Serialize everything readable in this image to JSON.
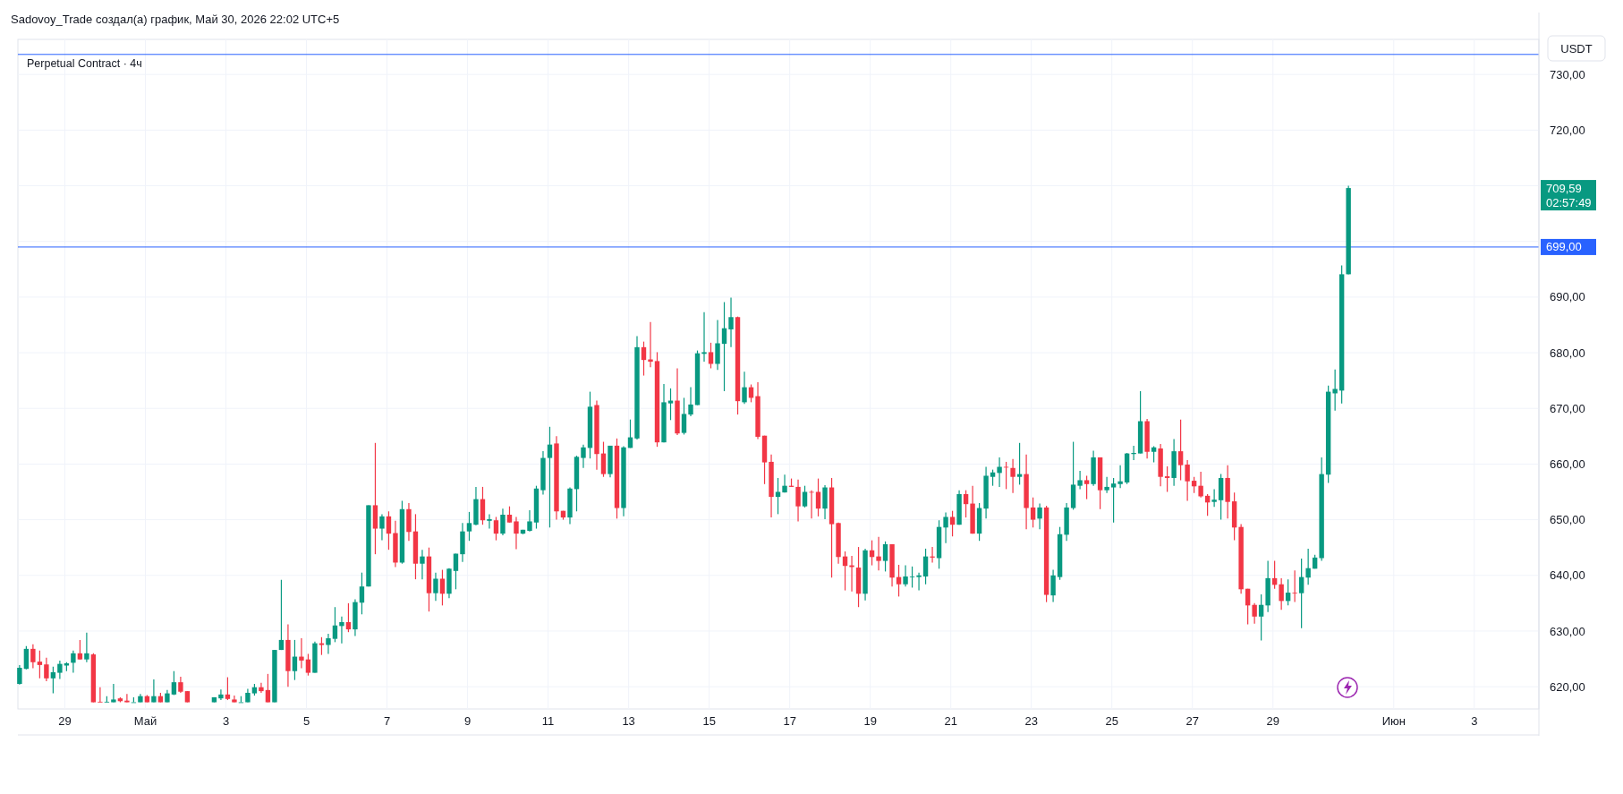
{
  "chart_data": {
    "type": "candlestick",
    "title": "Perpetual Contract · 4ч",
    "subtitle": "Sadovoy_Trade создал(а) график, Май 30, 2026 22:02 UTC+5",
    "ylabel": "USDT",
    "x": [
      "2026-04-27T21:00",
      "2026-04-28T01:00",
      "2026-04-28T05:00",
      "2026-04-28T09:00",
      "2026-04-28T13:00",
      "2026-04-28T17:00",
      "2026-04-28T21:00",
      "2026-04-29T01:00",
      "2026-04-29T05:00",
      "2026-04-29T09:00",
      "2026-04-29T13:00",
      "2026-04-29T17:00",
      "2026-04-29T21:00",
      "2026-04-30T01:00",
      "2026-04-30T05:00",
      "2026-04-30T09:00",
      "2026-04-30T13:00",
      "2026-04-30T17:00",
      "2026-04-30T21:00",
      "2026-05-01T01:00",
      "2026-05-01T05:00",
      "2026-05-01T09:00",
      "2026-05-01T13:00",
      "2026-05-01T17:00",
      "2026-05-01T21:00",
      "2026-05-02T01:00",
      "2026-05-02T17:00",
      "2026-05-02T21:00",
      "2026-05-03T01:00",
      "2026-05-03T05:00",
      "2026-05-03T09:00",
      "2026-05-03T13:00",
      "2026-05-03T17:00",
      "2026-05-03T21:00",
      "2026-05-04T01:00",
      "2026-05-04T05:00",
      "2026-05-04T09:00",
      "2026-05-04T13:00",
      "2026-05-04T17:00",
      "2026-05-04T21:00",
      "2026-05-05T01:00",
      "2026-05-05T05:00",
      "2026-05-05T09:00",
      "2026-05-05T13:00",
      "2026-05-05T17:00",
      "2026-05-05T21:00",
      "2026-05-06T01:00",
      "2026-05-06T05:00",
      "2026-05-06T09:00",
      "2026-05-06T13:00",
      "2026-05-06T17:00",
      "2026-05-06T21:00",
      "2026-05-07T01:00",
      "2026-05-07T05:00",
      "2026-05-07T09:00",
      "2026-05-07T13:00",
      "2026-05-07T17:00",
      "2026-05-07T21:00",
      "2026-05-08T01:00",
      "2026-05-08T05:00",
      "2026-05-08T09:00",
      "2026-05-08T13:00",
      "2026-05-08T17:00",
      "2026-05-08T21:00",
      "2026-05-09T01:00",
      "2026-05-09T05:00",
      "2026-05-09T09:00",
      "2026-05-09T13:00",
      "2026-05-09T17:00",
      "2026-05-09T21:00",
      "2026-05-10T01:00",
      "2026-05-10T05:00",
      "2026-05-10T09:00",
      "2026-05-10T13:00",
      "2026-05-10T17:00",
      "2026-05-10T21:00",
      "2026-05-11T01:00",
      "2026-05-11T05:00",
      "2026-05-11T09:00",
      "2026-05-11T13:00",
      "2026-05-11T17:00",
      "2026-05-11T21:00",
      "2026-05-12T01:00",
      "2026-05-12T05:00",
      "2026-05-12T09:00",
      "2026-05-12T13:00",
      "2026-05-12T17:00",
      "2026-05-12T21:00",
      "2026-05-13T01:00",
      "2026-05-13T05:00",
      "2026-05-13T09:00",
      "2026-05-13T13:00",
      "2026-05-13T17:00",
      "2026-05-13T21:00",
      "2026-05-14T01:00",
      "2026-05-14T05:00",
      "2026-05-14T09:00",
      "2026-05-14T13:00",
      "2026-05-14T17:00",
      "2026-05-14T21:00",
      "2026-05-15T01:00",
      "2026-05-15T05:00",
      "2026-05-15T09:00",
      "2026-05-15T13:00",
      "2026-05-15T17:00",
      "2026-05-15T21:00",
      "2026-05-16T01:00",
      "2026-05-16T05:00",
      "2026-05-16T09:00",
      "2026-05-16T13:00",
      "2026-05-16T17:00",
      "2026-05-16T21:00",
      "2026-05-17T01:00",
      "2026-05-17T05:00",
      "2026-05-17T09:00",
      "2026-05-17T13:00",
      "2026-05-17T17:00",
      "2026-05-17T21:00",
      "2026-05-18T01:00",
      "2026-05-18T05:00",
      "2026-05-18T09:00",
      "2026-05-18T13:00",
      "2026-05-18T17:00",
      "2026-05-18T21:00",
      "2026-05-19T01:00",
      "2026-05-19T05:00",
      "2026-05-19T09:00",
      "2026-05-19T13:00",
      "2026-05-19T17:00",
      "2026-05-19T21:00",
      "2026-05-20T01:00",
      "2026-05-20T05:00",
      "2026-05-20T09:00",
      "2026-05-20T13:00",
      "2026-05-20T17:00",
      "2026-05-20T21:00",
      "2026-05-21T01:00",
      "2026-05-21T05:00",
      "2026-05-21T09:00",
      "2026-05-21T13:00",
      "2026-05-21T17:00",
      "2026-05-21T21:00",
      "2026-05-22T01:00",
      "2026-05-22T05:00",
      "2026-05-22T09:00",
      "2026-05-22T13:00",
      "2026-05-22T17:00",
      "2026-05-22T21:00",
      "2026-05-23T01:00",
      "2026-05-23T05:00",
      "2026-05-23T09:00",
      "2026-05-23T13:00",
      "2026-05-23T17:00",
      "2026-05-23T21:00",
      "2026-05-24T01:00",
      "2026-05-24T05:00",
      "2026-05-24T09:00",
      "2026-05-24T13:00",
      "2026-05-24T17:00",
      "2026-05-24T21:00",
      "2026-05-25T01:00",
      "2026-05-25T05:00",
      "2026-05-25T09:00",
      "2026-05-25T13:00",
      "2026-05-25T17:00",
      "2026-05-25T21:00",
      "2026-05-26T01:00",
      "2026-05-26T05:00",
      "2026-05-26T09:00",
      "2026-05-26T13:00",
      "2026-05-26T17:00",
      "2026-05-26T21:00",
      "2026-05-27T01:00",
      "2026-05-27T05:00",
      "2026-05-27T09:00",
      "2026-05-27T13:00",
      "2026-05-27T17:00",
      "2026-05-27T21:00",
      "2026-05-28T01:00",
      "2026-05-28T05:00",
      "2026-05-28T09:00",
      "2026-05-28T13:00",
      "2026-05-28T17:00",
      "2026-05-28T21:00",
      "2026-05-29T01:00",
      "2026-05-29T05:00",
      "2026-05-29T09:00",
      "2026-05-29T13:00",
      "2026-05-29T17:00",
      "2026-05-29T21:00",
      "2026-05-30T01:00",
      "2026-05-30T05:00",
      "2026-05-30T09:00",
      "2026-05-30T13:00",
      "2026-05-30T17:00",
      "2026-05-30T21:00"
    ],
    "ohlc": [
      [
        620.5,
        623.9,
        620.4,
        623.4
      ],
      [
        623.2,
        627.3,
        623.1,
        626.8
      ],
      [
        626.8,
        627.6,
        623.3,
        624.4
      ],
      [
        624.5,
        626.5,
        621.5,
        623.9
      ],
      [
        624.0,
        625.2,
        621.0,
        621.5
      ],
      [
        621.5,
        623.6,
        618.8,
        622.6
      ],
      [
        622.5,
        624.7,
        621.4,
        624.1
      ],
      [
        623.8,
        624.4,
        622.8,
        624.2
      ],
      [
        624.3,
        626.5,
        622.5,
        626.0
      ],
      [
        626.0,
        628.4,
        624.9,
        624.9
      ],
      [
        624.9,
        629.7,
        624.4,
        626.0
      ],
      [
        625.8,
        626.0,
        617.2,
        617.2
      ],
      [
        617.3,
        619.9,
        617.2,
        617.2
      ],
      [
        617.2,
        618.3,
        617.2,
        617.3
      ],
      [
        617.2,
        620.5,
        617.2,
        617.7
      ],
      [
        617.9,
        618.1,
        617.2,
        617.4
      ],
      [
        617.5,
        618.7,
        617.2,
        617.2
      ],
      [
        617.2,
        618.1,
        617.2,
        617.2
      ],
      [
        617.2,
        618.7,
        617.2,
        618.3
      ],
      [
        618.3,
        618.5,
        617.2,
        617.2
      ],
      [
        617.2,
        621.3,
        617.2,
        618.3
      ],
      [
        618.3,
        618.9,
        617.2,
        617.2
      ],
      [
        617.2,
        619.4,
        617.2,
        618.8
      ],
      [
        618.6,
        622.8,
        618.5,
        620.8
      ],
      [
        620.8,
        621.8,
        618.9,
        619.1
      ],
      [
        619.2,
        619.2,
        617.2,
        617.2
      ],
      [
        617.2,
        618.1,
        617.2,
        618.1
      ],
      [
        617.9,
        619.5,
        617.6,
        618.6
      ],
      [
        618.6,
        621.7,
        617.6,
        617.8
      ],
      [
        617.7,
        618.4,
        617.2,
        617.2
      ],
      [
        617.2,
        618.3,
        617.2,
        617.2
      ],
      [
        617.2,
        619.6,
        617.2,
        618.9
      ],
      [
        618.8,
        620.5,
        618.4,
        619.9
      ],
      [
        619.9,
        620.7,
        618.9,
        619.2
      ],
      [
        619.4,
        622.3,
        617.2,
        617.2
      ],
      [
        617.2,
        626.6,
        617.2,
        626.6
      ],
      [
        626.6,
        639.2,
        626.6,
        628.4
      ],
      [
        628.4,
        631.2,
        620.0,
        622.8
      ],
      [
        622.8,
        628.4,
        621.2,
        625.4
      ],
      [
        625.4,
        628.7,
        623.3,
        624.7
      ],
      [
        624.9,
        625.9,
        622.0,
        622.5
      ],
      [
        622.5,
        628.1,
        622.5,
        627.8
      ],
      [
        627.8,
        628.9,
        625.7,
        627.5
      ],
      [
        627.5,
        629.5,
        625.9,
        628.7
      ],
      [
        628.6,
        634.3,
        628.0,
        631.0
      ],
      [
        630.9,
        632.6,
        627.8,
        631.6
      ],
      [
        631.6,
        635.0,
        629.8,
        630.3
      ],
      [
        630.3,
        635.7,
        629.1,
        635.2
      ],
      [
        635.1,
        640.5,
        633.0,
        638.0
      ],
      [
        638.0,
        652.6,
        638.0,
        652.6
      ],
      [
        652.6,
        663.8,
        643.8,
        648.4
      ],
      [
        648.4,
        651.0,
        646.3,
        650.6
      ],
      [
        650.6,
        651.5,
        644.6,
        647.5
      ],
      [
        647.6,
        649.8,
        641.5,
        642.3
      ],
      [
        642.3,
        653.4,
        642.1,
        651.9
      ],
      [
        651.9,
        653.0,
        646.2,
        647.8
      ],
      [
        647.9,
        651.0,
        639.3,
        642.1
      ],
      [
        642.1,
        644.6,
        639.3,
        643.4
      ],
      [
        643.4,
        645.0,
        633.5,
        636.8
      ],
      [
        636.8,
        640.5,
        635.4,
        639.4
      ],
      [
        639.4,
        641.0,
        634.6,
        636.7
      ],
      [
        636.7,
        641.3,
        635.9,
        641.2
      ],
      [
        640.8,
        643.9,
        637.5,
        643.9
      ],
      [
        643.8,
        649.4,
        642.4,
        647.9
      ],
      [
        647.9,
        651.4,
        646.2,
        649.4
      ],
      [
        649.1,
        655.9,
        649.0,
        653.7
      ],
      [
        653.7,
        655.9,
        649.1,
        649.9
      ],
      [
        649.8,
        651.0,
        648.4,
        650.1
      ],
      [
        649.9,
        650.5,
        646.3,
        647.5
      ],
      [
        647.5,
        652.0,
        647.2,
        650.9
      ],
      [
        650.9,
        652.4,
        649.5,
        649.5
      ],
      [
        649.7,
        650.5,
        644.7,
        647.5
      ],
      [
        647.5,
        648.2,
        647.4,
        648.2
      ],
      [
        648.0,
        651.7,
        647.9,
        649.7
      ],
      [
        649.5,
        656.1,
        648.4,
        655.6
      ],
      [
        655.3,
        662.3,
        654.5,
        661.1
      ],
      [
        661.1,
        666.7,
        648.6,
        663.5
      ],
      [
        663.7,
        665.0,
        650.0,
        651.5
      ],
      [
        651.6,
        651.6,
        650.0,
        650.4
      ],
      [
        650.4,
        655.8,
        649.2,
        655.6
      ],
      [
        655.5,
        661.5,
        651.5,
        661.3
      ],
      [
        661.1,
        663.5,
        659.3,
        663.0
      ],
      [
        662.9,
        673.0,
        661.0,
        670.3
      ],
      [
        670.6,
        671.4,
        659.0,
        661.8
      ],
      [
        661.9,
        664.0,
        657.7,
        658.2
      ],
      [
        658.2,
        663.3,
        657.6,
        663.3
      ],
      [
        663.3,
        664.6,
        650.2,
        652.1
      ],
      [
        652.1,
        663.2,
        650.6,
        663.0
      ],
      [
        662.9,
        668.0,
        662.9,
        664.8
      ],
      [
        664.6,
        683.0,
        664.4,
        681.0
      ],
      [
        681.0,
        682.0,
        675.9,
        678.7
      ],
      [
        678.8,
        685.5,
        677.4,
        678.4
      ],
      [
        678.5,
        680.1,
        663.1,
        663.9
      ],
      [
        663.9,
        674.4,
        663.9,
        671.1
      ],
      [
        670.9,
        673.6,
        667.9,
        671.4
      ],
      [
        671.4,
        677.2,
        665.2,
        665.5
      ],
      [
        665.6,
        671.9,
        665.3,
        669.0
      ],
      [
        668.9,
        673.8,
        668.6,
        670.7
      ],
      [
        670.6,
        680.4,
        670.6,
        679.9
      ],
      [
        679.8,
        687.3,
        678.4,
        680.1
      ],
      [
        680.1,
        681.8,
        677.2,
        678.0
      ],
      [
        678.0,
        685.9,
        676.9,
        681.7
      ],
      [
        681.6,
        689.1,
        673.1,
        684.4
      ],
      [
        684.2,
        689.9,
        681.0,
        686.4
      ],
      [
        686.4,
        686.5,
        668.9,
        671.3
      ],
      [
        671.1,
        676.6,
        670.8,
        673.8
      ],
      [
        673.8,
        674.3,
        671.1,
        671.9
      ],
      [
        672.2,
        674.7,
        664.5,
        664.9
      ],
      [
        665.1,
        665.1,
        656.4,
        660.3
      ],
      [
        660.4,
        661.7,
        650.4,
        654.1
      ],
      [
        654.1,
        657.5,
        651.0,
        655.0
      ],
      [
        654.9,
        658.1,
        654.9,
        656.1
      ],
      [
        656.1,
        657.4,
        655.9,
        655.9
      ],
      [
        655.9,
        657.2,
        649.7,
        652.4
      ],
      [
        652.4,
        656.1,
        652.2,
        655.0
      ],
      [
        655.0,
        655.3,
        650.2,
        654.9
      ],
      [
        655.0,
        657.4,
        650.6,
        652.0
      ],
      [
        652.0,
        656.2,
        650.1,
        655.8
      ],
      [
        655.8,
        657.5,
        639.6,
        649.2
      ],
      [
        649.4,
        649.5,
        642.1,
        643.3
      ],
      [
        643.4,
        644.3,
        637.3,
        641.7
      ],
      [
        641.8,
        643.5,
        637.1,
        641.5
      ],
      [
        641.4,
        645.1,
        634.3,
        636.7
      ],
      [
        636.7,
        644.8,
        635.5,
        644.5
      ],
      [
        644.5,
        646.3,
        641.8,
        643.3
      ],
      [
        643.4,
        646.9,
        640.9,
        642.6
      ],
      [
        642.6,
        646.1,
        640.7,
        645.6
      ],
      [
        645.6,
        645.6,
        638.0,
        639.6
      ],
      [
        639.7,
        641.9,
        636.2,
        638.4
      ],
      [
        638.4,
        641.8,
        638.0,
        639.8
      ],
      [
        639.7,
        641.6,
        637.8,
        639.8
      ],
      [
        639.7,
        640.5,
        637.3,
        640.0
      ],
      [
        639.8,
        644.8,
        638.4,
        643.4
      ],
      [
        643.4,
        645.1,
        642.3,
        643.2
      ],
      [
        643.1,
        649.9,
        641.2,
        648.7
      ],
      [
        648.6,
        651.3,
        645.8,
        650.5
      ],
      [
        650.5,
        651.6,
        647.0,
        649.1
      ],
      [
        649.1,
        655.3,
        649.1,
        654.6
      ],
      [
        654.6,
        655.3,
        650.4,
        652.8
      ],
      [
        652.9,
        656.1,
        647.5,
        647.5
      ],
      [
        647.5,
        653.0,
        646.2,
        652.1
      ],
      [
        652.0,
        659.5,
        650.2,
        657.9
      ],
      [
        657.7,
        659.0,
        656.1,
        658.5
      ],
      [
        658.4,
        661.2,
        655.9,
        659.5
      ],
      [
        659.5,
        660.4,
        655.5,
        659.4
      ],
      [
        659.3,
        660.9,
        654.8,
        657.7
      ],
      [
        657.7,
        663.8,
        656.3,
        658.2
      ],
      [
        658.2,
        661.7,
        648.3,
        652.1
      ],
      [
        652.2,
        654.0,
        648.6,
        650.0
      ],
      [
        650.2,
        652.9,
        648.3,
        652.2
      ],
      [
        652.2,
        652.5,
        635.2,
        636.5
      ],
      [
        636.4,
        641.0,
        635.2,
        640.0
      ],
      [
        639.7,
        648.7,
        639.2,
        647.4
      ],
      [
        647.3,
        653.0,
        646.2,
        652.2
      ],
      [
        652.1,
        664.0,
        651.8,
        656.3
      ],
      [
        656.1,
        658.8,
        655.5,
        657.1
      ],
      [
        657.1,
        657.9,
        653.7,
        656.4
      ],
      [
        656.4,
        662.4,
        656.1,
        661.2
      ],
      [
        661.2,
        661.2,
        651.9,
        655.3
      ],
      [
        655.3,
        657.7,
        654.8,
        655.9
      ],
      [
        655.8,
        657.5,
        649.5,
        656.5
      ],
      [
        656.4,
        659.8,
        655.7,
        656.9
      ],
      [
        656.7,
        662.0,
        656.4,
        661.9
      ],
      [
        661.8,
        663.3,
        660.7,
        662.0
      ],
      [
        661.9,
        673.1,
        661.9,
        667.7
      ],
      [
        667.7,
        668.1,
        661.0,
        662.2
      ],
      [
        662.2,
        663.2,
        660.3,
        663.0
      ],
      [
        662.8,
        663.6,
        656.0,
        657.7
      ],
      [
        657.8,
        659.6,
        655.0,
        657.5
      ],
      [
        657.5,
        664.5,
        656.1,
        662.3
      ],
      [
        662.3,
        668.0,
        657.1,
        659.8
      ],
      [
        659.9,
        660.7,
        653.4,
        656.9
      ],
      [
        657.0,
        657.7,
        654.8,
        656.0
      ],
      [
        656.1,
        658.6,
        654.0,
        654.2
      ],
      [
        654.3,
        654.6,
        650.7,
        653.1
      ],
      [
        653.2,
        655.5,
        652.3,
        653.6
      ],
      [
        653.5,
        658.2,
        650.0,
        657.5
      ],
      [
        657.5,
        659.8,
        650.2,
        653.2
      ],
      [
        653.3,
        654.9,
        646.3,
        648.6
      ],
      [
        648.7,
        649.2,
        636.7,
        637.5
      ],
      [
        637.6,
        637.6,
        631.2,
        634.6
      ],
      [
        634.7,
        635.0,
        631.3,
        632.6
      ],
      [
        632.6,
        636.6,
        628.3,
        634.7
      ],
      [
        634.6,
        642.6,
        633.4,
        639.5
      ],
      [
        639.5,
        642.6,
        637.6,
        638.3
      ],
      [
        638.4,
        639.5,
        633.8,
        635.4
      ],
      [
        635.4,
        639.3,
        634.6,
        636.9
      ],
      [
        636.9,
        640.9,
        635.2,
        636.8
      ],
      [
        636.8,
        643.0,
        630.5,
        639.7
      ],
      [
        639.6,
        644.8,
        638.3,
        641.3
      ],
      [
        641.2,
        643.7,
        641.2,
        643.2
      ],
      [
        643.1,
        661.2,
        642.6,
        658.2
      ],
      [
        658.1,
        674.1,
        656.6,
        673.0
      ],
      [
        672.7,
        677.0,
        669.6,
        673.5
      ],
      [
        673.2,
        695.7,
        670.9,
        694.1
      ],
      [
        694.1,
        710.0,
        694.1,
        709.59
      ]
    ],
    "xlim": [
      "2026-04-27T20:00",
      "2026-06-04T14:30"
    ],
    "xticks": [
      {
        "value": "2026-04-29",
        "label": "29"
      },
      {
        "value": "2026-05-01",
        "label": "Май"
      },
      {
        "value": "2026-05-03",
        "label": "3"
      },
      {
        "value": "2026-05-05",
        "label": "5"
      },
      {
        "value": "2026-05-07",
        "label": "7"
      },
      {
        "value": "2026-05-09",
        "label": "9"
      },
      {
        "value": "2026-05-11",
        "label": "11"
      },
      {
        "value": "2026-05-13",
        "label": "13"
      },
      {
        "value": "2026-05-15",
        "label": "15"
      },
      {
        "value": "2026-05-17",
        "label": "17"
      },
      {
        "value": "2026-05-19",
        "label": "19"
      },
      {
        "value": "2026-05-21",
        "label": "21"
      },
      {
        "value": "2026-05-23",
        "label": "23"
      },
      {
        "value": "2026-05-25",
        "label": "25"
      },
      {
        "value": "2026-05-27",
        "label": "27"
      },
      {
        "value": "2026-05-29",
        "label": "29"
      },
      {
        "value": "2026-06-01",
        "label": "Июн"
      },
      {
        "value": "2026-06-03",
        "label": "3"
      }
    ],
    "ylim": [
      616.0,
      736.3
    ],
    "yticks": [
      {
        "value": 620,
        "label": "620,00"
      },
      {
        "value": 630,
        "label": "630,00"
      },
      {
        "value": 640,
        "label": "640,00"
      },
      {
        "value": 650,
        "label": "650,00"
      },
      {
        "value": 660,
        "label": "660,00"
      },
      {
        "value": 670,
        "label": "670,00"
      },
      {
        "value": 680,
        "label": "680,00"
      },
      {
        "value": 690,
        "label": "690,00"
      },
      {
        "value": 700,
        "label": null
      },
      {
        "value": 710,
        "label": null
      },
      {
        "value": 720,
        "label": "720,00"
      },
      {
        "value": 730,
        "label": "730,00"
      }
    ],
    "grid": true,
    "ref_lines": [
      {
        "axis": "y",
        "value": 733.6,
        "label": null,
        "color": "#2962ff"
      },
      {
        "axis": "y",
        "value": 699,
        "label": "699,00",
        "color": "#2962ff"
      }
    ],
    "annotations": [
      "709,59",
      "02:57:49"
    ]
  }
}
